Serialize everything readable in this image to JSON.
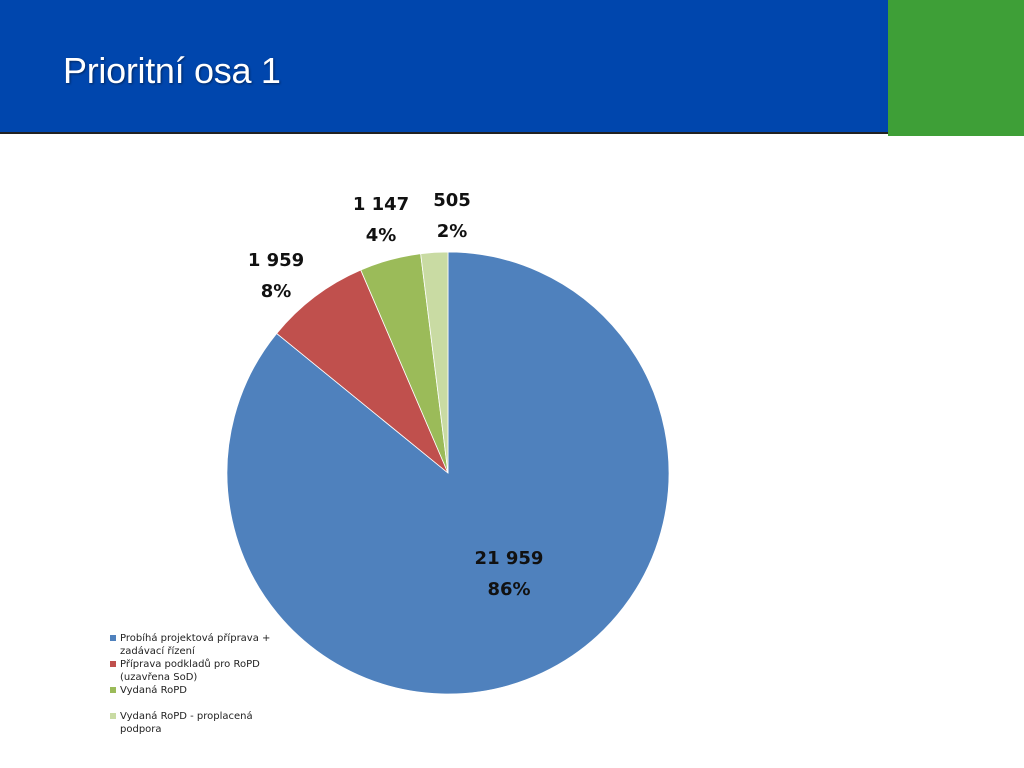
{
  "slide": {
    "title": "Prioritní osa 1"
  },
  "colors": {
    "header": "#0046AD",
    "accent": "#3E9F37"
  },
  "chart_data": {
    "type": "pie",
    "title": "",
    "start_angle_deg": 0,
    "direction": "clockwise",
    "legend_position": "bottom-left",
    "slices": [
      {
        "label": "Probíhá projektová příprava + zadávací řízení",
        "value": 21959,
        "value_label": "21 959",
        "percent_label": "86%",
        "color": "#4F81BD"
      },
      {
        "label": "Příprava podkladů pro RoPD (uzavřena SoD)",
        "value": 1959,
        "value_label": "1 959",
        "percent_label": "8%",
        "color": "#C0504D"
      },
      {
        "label": "Vydaná RoPD",
        "value": 1147,
        "value_label": "1 147",
        "percent_label": "4%",
        "color": "#9BBB59"
      },
      {
        "label": "Vydaná RoPD - proplacená podpora",
        "value": 505,
        "value_label": "505",
        "percent_label": "2%",
        "color": "#C9DBA3"
      }
    ]
  }
}
